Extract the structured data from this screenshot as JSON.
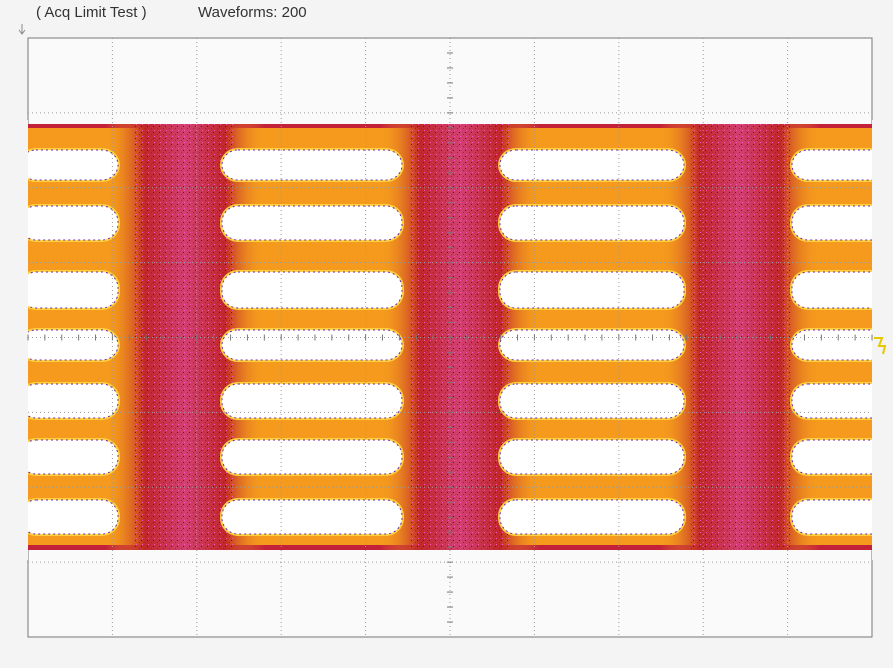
{
  "header": {
    "mode": "( Acq Limit Test )",
    "waveforms": "Waveforms: 200"
  }
}
